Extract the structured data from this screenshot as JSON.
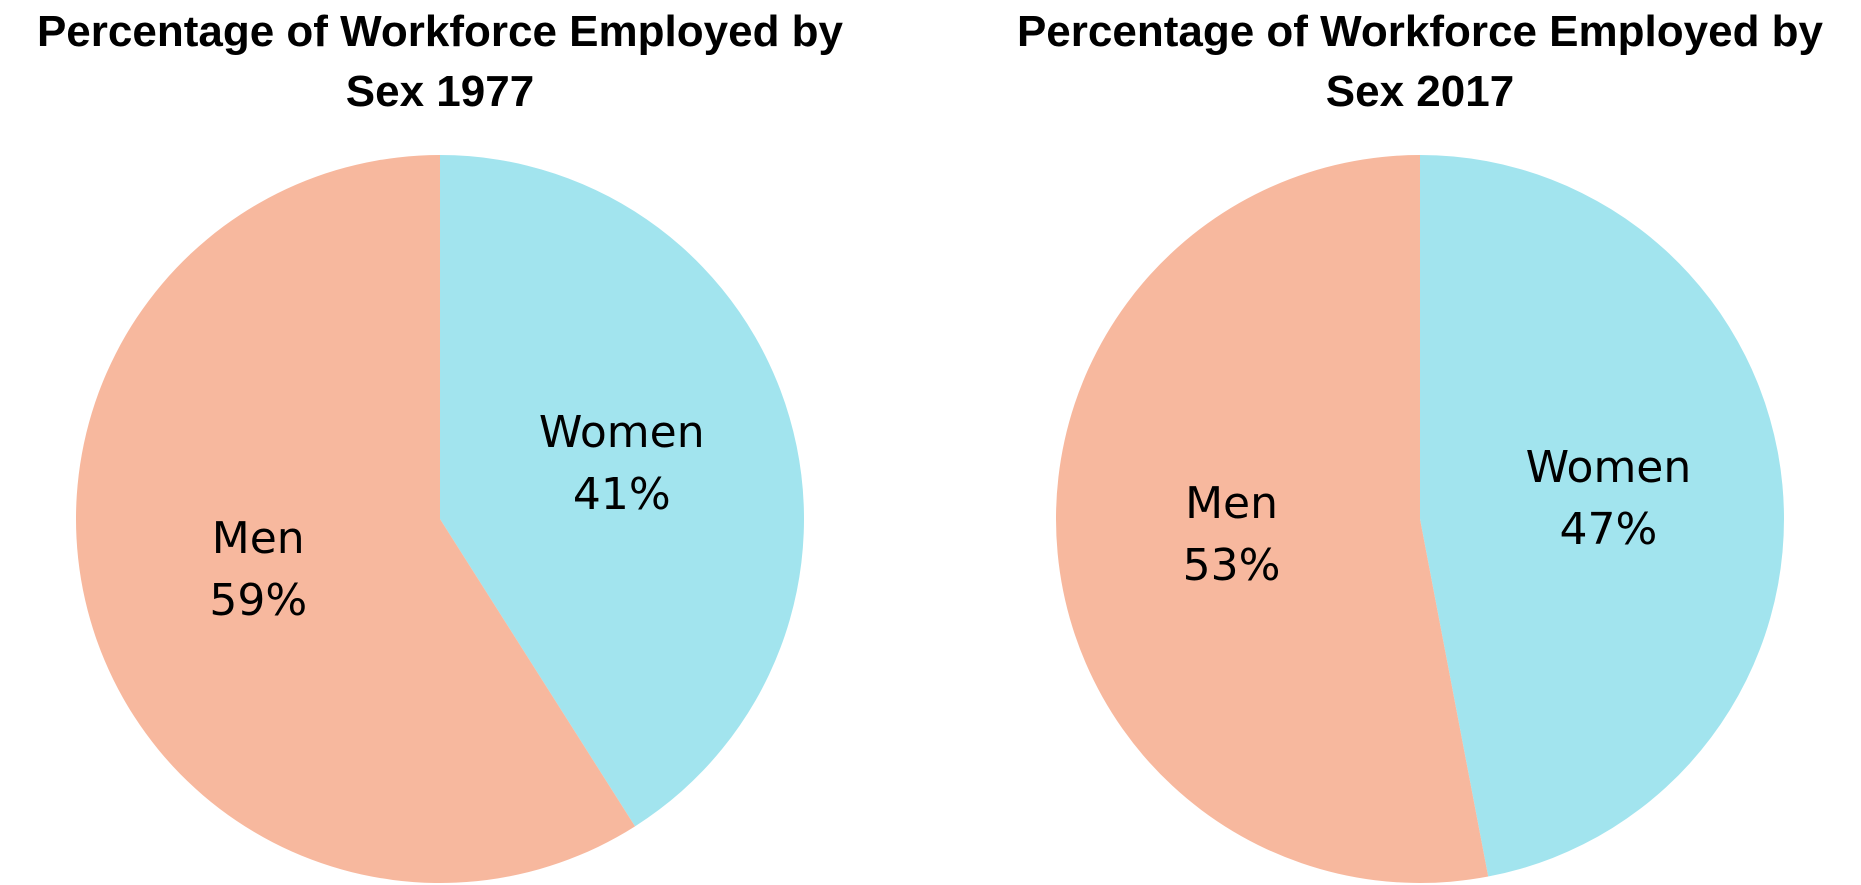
{
  "chart_data": [
    {
      "type": "pie",
      "title": "Percentage of Workforce Employed by Sex 1977",
      "categories": [
        "Women",
        "Men"
      ],
      "values": [
        41,
        59
      ],
      "value_labels": [
        "41%",
        "59%"
      ],
      "colors": [
        "#a2e4ee",
        "#f7b89e"
      ]
    },
    {
      "type": "pie",
      "title": "Percentage of Workforce Employed by Sex 2017",
      "categories": [
        "Women",
        "Men"
      ],
      "values": [
        47,
        53
      ],
      "value_labels": [
        "47%",
        "53%"
      ],
      "colors": [
        "#a2e4ee",
        "#f7b89e"
      ]
    }
  ]
}
